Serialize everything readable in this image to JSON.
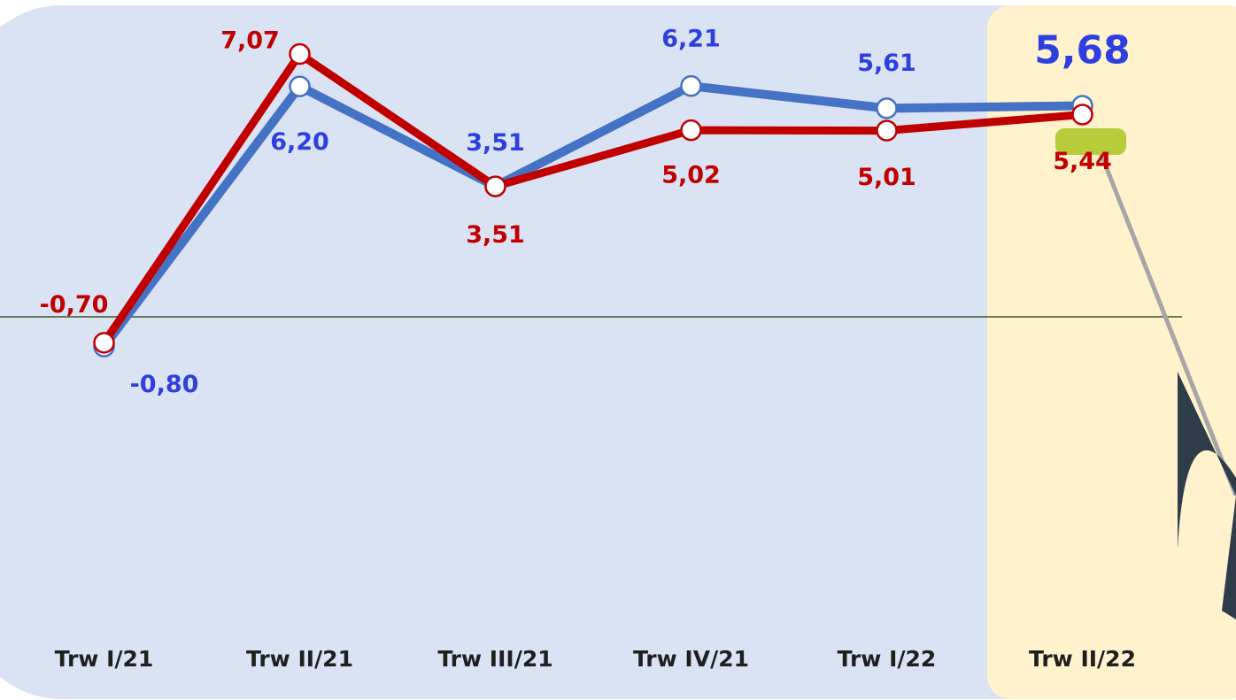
{
  "chart_data": {
    "type": "line",
    "categories": [
      "Trw I/21",
      "Trw II/21",
      "Trw III/21",
      "Trw IV/21",
      "Trw I/22",
      "Trw II/22"
    ],
    "series": [
      {
        "color": "#4472c4",
        "values": [
          -0.8,
          6.2,
          3.51,
          6.21,
          5.61,
          5.68
        ],
        "value_labels": [
          "-0,80",
          "6,20",
          "3,51",
          "6,21",
          "5,61",
          "5,68"
        ],
        "label_color": "#2e3fe0"
      },
      {
        "color": "#c00000",
        "values": [
          -0.7,
          7.07,
          3.51,
          5.02,
          5.01,
          5.44
        ],
        "value_labels": [
          "-0,70",
          "7,07",
          "3,51",
          "5,02",
          "5,01",
          "5,44"
        ],
        "label_color": "#c00000"
      }
    ],
    "ylim": [
      -8,
      8.5
    ],
    "highlight_color": "#fff2cc",
    "background_color": "#dae3f3"
  }
}
